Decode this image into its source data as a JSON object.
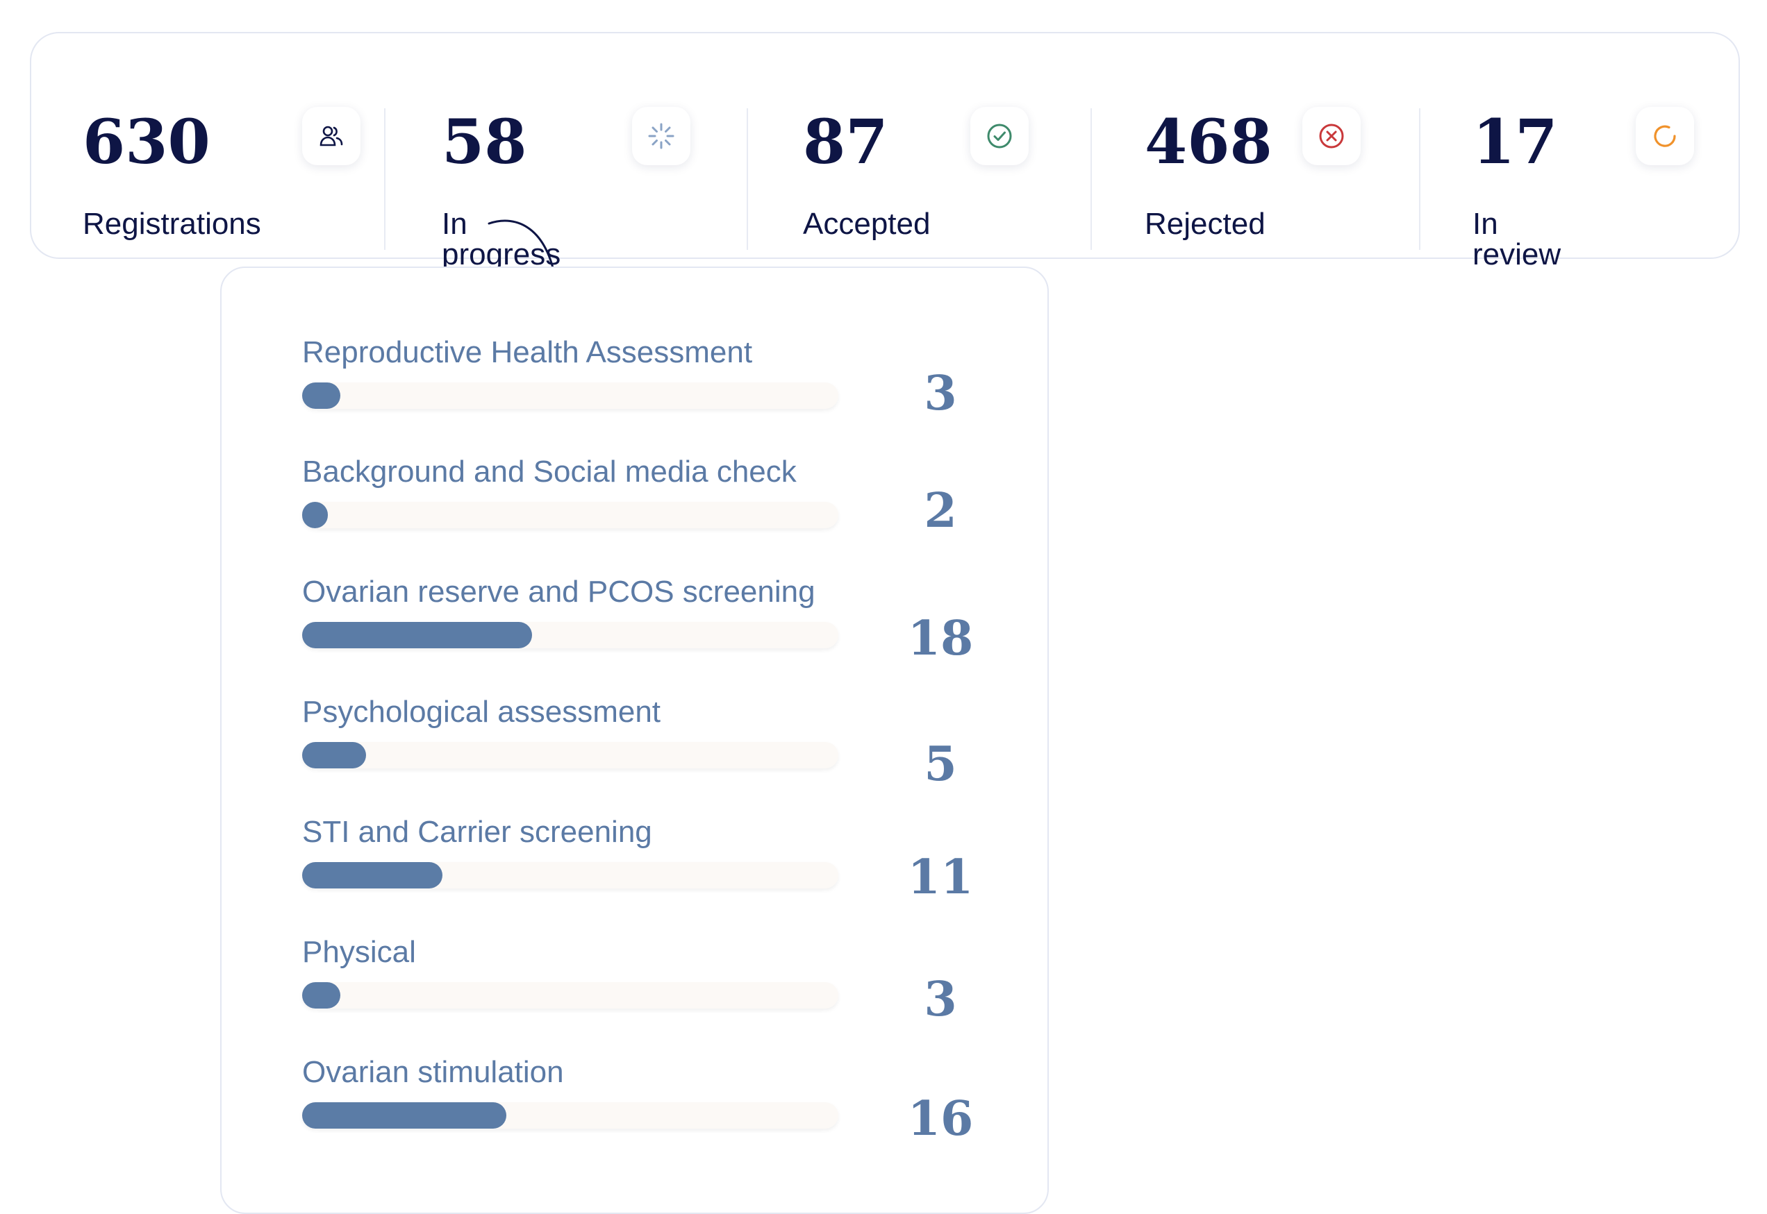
{
  "stats": [
    {
      "value": "630",
      "label": "Registrations",
      "icon": "users-icon",
      "icon_color": "#0e1545"
    },
    {
      "value": "58",
      "label": "In progress",
      "icon": "loader-icon",
      "icon_color": "#8aa3c5"
    },
    {
      "value": "87",
      "label": "Accepted",
      "icon": "check-circle-icon",
      "icon_color": "#3e8a6b"
    },
    {
      "value": "468",
      "label": "Rejected",
      "icon": "x-circle-icon",
      "icon_color": "#c9383a"
    },
    {
      "value": "17",
      "label": "In review",
      "icon": "refresh-icon",
      "icon_color": "#f0922b"
    }
  ],
  "progress_breakdown": {
    "bar_color": "#5b7ca6",
    "track_color": "#fcf9f6",
    "max_value": 42,
    "items": [
      {
        "label": "Reproductive Health Assessment",
        "count": "3",
        "value": 3
      },
      {
        "label": "Background and Social media check",
        "count": "2",
        "value": 2
      },
      {
        "label": "Ovarian reserve and PCOS screening",
        "count": "18",
        "value": 18
      },
      {
        "label": "Psychological assessment",
        "count": "5",
        "value": 5
      },
      {
        "label": "STI and Carrier screening",
        "count": "11",
        "value": 11
      },
      {
        "label": "Physical",
        "count": "3",
        "value": 3
      },
      {
        "label": "Ovarian stimulation",
        "count": "16",
        "value": 16
      }
    ]
  }
}
